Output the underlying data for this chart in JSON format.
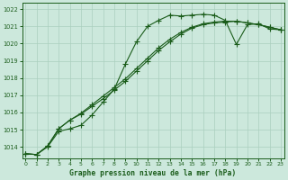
{
  "title": "Graphe pression niveau de la mer (hPa)",
  "bg_color": "#cce8dc",
  "line_color": "#1a5c1a",
  "grid_color": "#aacfbe",
  "xlim": [
    -0.3,
    23.3
  ],
  "ylim": [
    1013.35,
    1022.35
  ],
  "yticks": [
    1014,
    1015,
    1016,
    1017,
    1018,
    1019,
    1020,
    1021,
    1022
  ],
  "xticks": [
    0,
    1,
    2,
    3,
    4,
    5,
    6,
    7,
    8,
    9,
    10,
    11,
    12,
    13,
    14,
    15,
    16,
    17,
    18,
    19,
    20,
    21,
    22,
    23
  ],
  "series1_x": [
    0,
    1,
    2,
    3,
    4,
    5,
    6,
    7,
    8,
    9,
    10,
    11,
    12,
    13,
    14,
    15,
    16,
    17,
    18,
    19,
    20,
    21,
    22,
    23
  ],
  "series1_y": [
    1013.6,
    1013.55,
    1014.0,
    1014.9,
    1015.05,
    1015.25,
    1015.85,
    1016.6,
    1017.35,
    1018.8,
    1020.1,
    1021.0,
    1021.35,
    1021.65,
    1021.6,
    1021.65,
    1021.7,
    1021.65,
    1021.35,
    1019.95,
    1021.1,
    1021.15,
    1020.85,
    1020.8
  ],
  "series2_x": [
    0,
    1,
    2,
    3,
    4,
    5,
    6,
    7,
    8,
    9,
    10,
    11,
    12,
    13,
    14,
    15,
    16,
    17,
    18,
    19,
    20,
    21,
    22,
    23
  ],
  "series2_y": [
    1013.6,
    1013.55,
    1014.05,
    1015.05,
    1015.55,
    1015.95,
    1016.45,
    1016.95,
    1017.45,
    1017.95,
    1018.55,
    1019.15,
    1019.75,
    1020.25,
    1020.65,
    1020.95,
    1021.15,
    1021.25,
    1021.3,
    1021.3,
    1021.2,
    1021.1,
    1020.95,
    1020.8
  ],
  "series3_x": [
    0,
    1,
    2,
    3,
    4,
    5,
    6,
    7,
    8,
    9,
    10,
    11,
    12,
    13,
    14,
    15,
    16,
    17,
    18,
    19,
    20,
    21,
    22,
    23
  ],
  "series3_y": [
    1013.6,
    1013.55,
    1014.05,
    1015.05,
    1015.55,
    1015.9,
    1016.35,
    1016.8,
    1017.3,
    1017.8,
    1018.4,
    1019.0,
    1019.6,
    1020.1,
    1020.55,
    1020.9,
    1021.1,
    1021.2,
    1021.25,
    1021.3,
    1021.2,
    1021.1,
    1020.95,
    1020.8
  ]
}
